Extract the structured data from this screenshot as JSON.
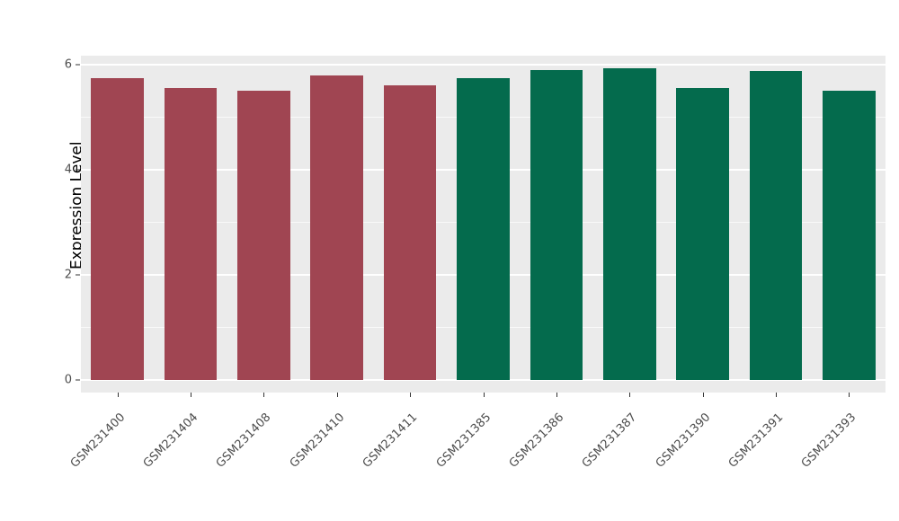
{
  "chart_data": {
    "type": "bar",
    "title": "",
    "xlabel": "",
    "ylabel": "Expression Level",
    "categories": [
      "GSM231400",
      "GSM231404",
      "GSM231408",
      "GSM231410",
      "GSM231411",
      "GSM231385",
      "GSM231386",
      "GSM231387",
      "GSM231390",
      "GSM231391",
      "GSM231393"
    ],
    "values": [
      5.75,
      5.55,
      5.5,
      5.8,
      5.6,
      5.75,
      5.9,
      5.93,
      5.55,
      5.88,
      5.5
    ],
    "bar_colors": [
      "#A04552",
      "#A04552",
      "#A04552",
      "#A04552",
      "#A04552",
      "#046B4D",
      "#046B4D",
      "#046B4D",
      "#046B4D",
      "#046B4D",
      "#046B4D"
    ],
    "group_colors": {
      "red_group": "#A04552",
      "green_group": "#046B4D"
    },
    "ylim": [
      0,
      6.17
    ],
    "yticks_major": [
      0,
      2,
      4,
      6
    ],
    "yticks_minor": [
      1,
      3,
      5
    ],
    "grid": true,
    "legend_position": "none",
    "panel_background": "#EBEBEB",
    "bar_width_fraction": 0.72
  }
}
